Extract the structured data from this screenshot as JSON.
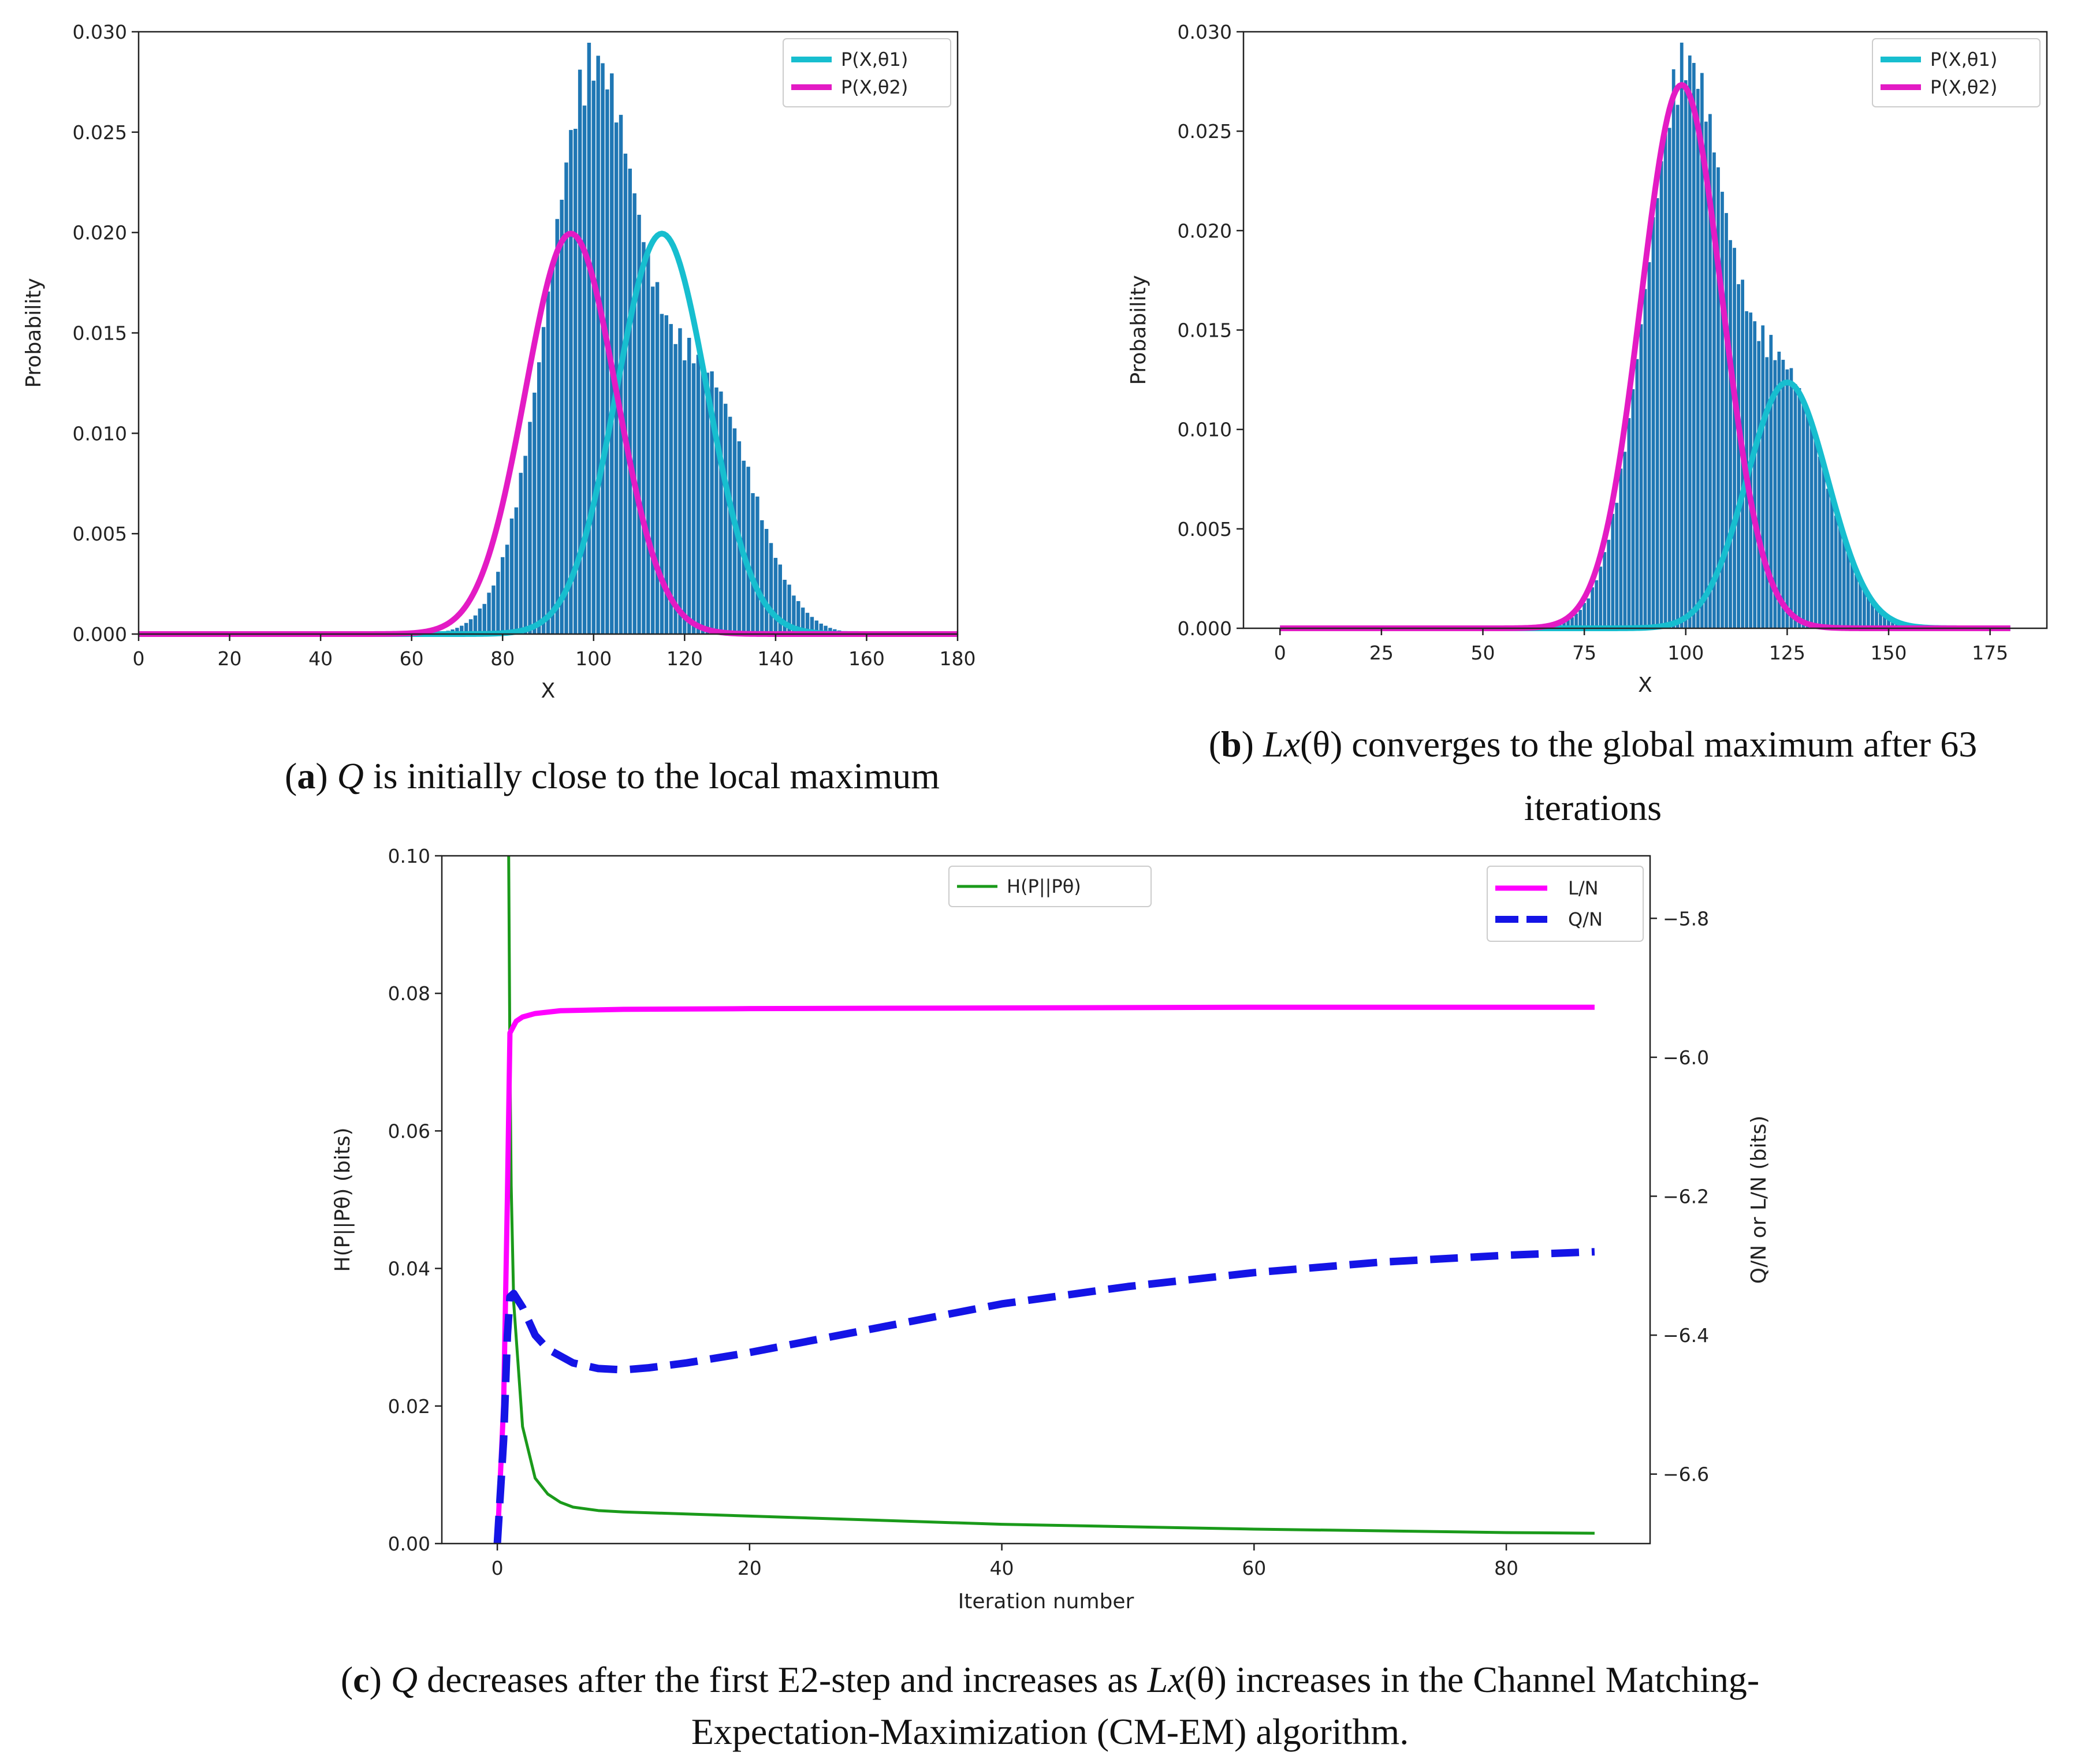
{
  "colors": {
    "hist": "#1f77b4",
    "cyan": "#17becf",
    "magenta": "#e31bc4",
    "green": "#1a9a1a",
    "lmag": "#ff00ff",
    "blue": "#1414e6"
  },
  "captions": {
    "a": {
      "label": "a",
      "prefix": "(",
      "mid": ") ",
      "var": "Q",
      "text": " is initially close to the local maximum"
    },
    "b": {
      "label": "b",
      "prefix": "(",
      "mid": ") ",
      "var": "Lx",
      "paren": "(θ)",
      "text": " converges to the global maximum after 63",
      "line2": "iterations"
    },
    "c": {
      "label": "c",
      "prefix": "(",
      "mid": ") ",
      "var": "Q",
      "text1": " decreases after the first E2-step and increases as ",
      "var2": "Lx",
      "paren": "(θ)",
      "text2": " increases in the Channel Matching-",
      "line2": "Expectation-Maximization (CM-EM) algorithm."
    }
  },
  "chart_data": [
    {
      "id": "a",
      "type": "bar",
      "xlabel": "X",
      "ylabel": "Probability",
      "xlim": [
        0,
        180
      ],
      "ylim": [
        0,
        0.03
      ],
      "xticks": [
        "0",
        "20",
        "40",
        "60",
        "80",
        "100",
        "120",
        "140",
        "160",
        "180"
      ],
      "yticks": [
        "0.000",
        "0.005",
        "0.010",
        "0.015",
        "0.020",
        "0.025",
        "0.030"
      ],
      "legend_position": "top-right",
      "histogram": {
        "description": "mixture of two Gaussians: w=0.7 mu=100 sd=10 and w=0.3 mu=125 sd=10, one bar per integer x",
        "x_start": 60,
        "x_end": 158,
        "components": [
          {
            "weight": 0.7,
            "mu": 100,
            "sigma": 10
          },
          {
            "weight": 0.3,
            "mu": 125,
            "sigma": 10
          }
        ]
      },
      "series": [
        {
          "name": "P(X,θ1)",
          "color": "cyan",
          "mu": 115,
          "sigma": 10,
          "weight": 0.5
        },
        {
          "name": "P(X,θ2)",
          "color": "magenta",
          "mu": 95,
          "sigma": 10,
          "weight": 0.5
        }
      ]
    },
    {
      "id": "b",
      "type": "bar",
      "xlabel": "X",
      "ylabel": "Probability",
      "xlim": [
        -9,
        189
      ],
      "ylim": [
        0,
        0.03
      ],
      "xticks": [
        "0",
        "25",
        "50",
        "75",
        "100",
        "125",
        "150",
        "175"
      ],
      "yticks": [
        "0.000",
        "0.005",
        "0.010",
        "0.015",
        "0.020",
        "0.025",
        "0.030"
      ],
      "legend_position": "top-right",
      "histogram": {
        "description": "same sample histogram as panel (a)",
        "x_start": 60,
        "x_end": 158,
        "components": [
          {
            "weight": 0.7,
            "mu": 100,
            "sigma": 10
          },
          {
            "weight": 0.3,
            "mu": 125,
            "sigma": 10
          }
        ]
      },
      "series": [
        {
          "name": "P(X,θ1)",
          "color": "cyan",
          "mu": 125,
          "sigma": 10,
          "weight": 0.31
        },
        {
          "name": "P(X,θ2)",
          "color": "magenta",
          "mu": 99,
          "sigma": 10,
          "weight": 0.685
        }
      ]
    },
    {
      "id": "c",
      "type": "line",
      "xlabel": "Iteration number",
      "ylabel_left": "H(P||Pθ) (bits)",
      "ylabel_right": "Q/N or L/N (bits)",
      "xlim": [
        -4.4,
        91.4
      ],
      "xticks": [
        "0",
        "20",
        "40",
        "60",
        "80"
      ],
      "ylim_left": [
        0,
        0.1
      ],
      "yticks_left": [
        "0.00",
        "0.02",
        "0.04",
        "0.06",
        "0.08",
        "0.10"
      ],
      "ylim_right": [
        -6.7,
        -5.71
      ],
      "yticks_right": [
        "−5.8",
        "−6.0",
        "−6.2",
        "−6.4",
        "−6.6"
      ],
      "legend_left": {
        "position": "top-center",
        "items": [
          "H(P||Pθ)"
        ]
      },
      "legend_right": {
        "position": "top-right",
        "items": [
          "L/N",
          "Q/N"
        ]
      },
      "series": [
        {
          "name": "H(P||Pθ)",
          "axis": "left",
          "color": "green",
          "style": "solid",
          "x": [
            0.9,
            1.0,
            1.1,
            1.3,
            2,
            3,
            4,
            5,
            6,
            8,
            10,
            20,
            40,
            60,
            80,
            87
          ],
          "y": [
            0.1,
            0.07,
            0.052,
            0.035,
            0.017,
            0.0095,
            0.0072,
            0.006,
            0.0053,
            0.0048,
            0.0046,
            0.004,
            0.0028,
            0.0021,
            0.0016,
            0.0015
          ]
        },
        {
          "name": "L/N",
          "axis": "right",
          "color": "lmag",
          "style": "solid",
          "x": [
            0,
            0.5,
            0.8,
            1,
            1.5,
            2,
            3,
            5,
            10,
            20,
            40,
            60,
            87
          ],
          "y": [
            -6.7,
            -6.5,
            -6.2,
            -5.965,
            -5.948,
            -5.942,
            -5.937,
            -5.933,
            -5.931,
            -5.93,
            -5.929,
            -5.928,
            -5.928
          ]
        },
        {
          "name": "Q/N",
          "axis": "right",
          "color": "blue",
          "style": "dashed",
          "x": [
            0,
            0.5,
            0.8,
            1,
            1.3,
            2,
            3,
            4,
            6,
            8,
            10,
            12,
            15,
            20,
            30,
            40,
            50,
            60,
            70,
            80,
            87
          ],
          "y": [
            -6.7,
            -6.55,
            -6.4,
            -6.345,
            -6.34,
            -6.36,
            -6.4,
            -6.42,
            -6.44,
            -6.448,
            -6.45,
            -6.447,
            -6.44,
            -6.425,
            -6.39,
            -6.355,
            -6.33,
            -6.31,
            -6.295,
            -6.285,
            -6.28
          ]
        }
      ]
    }
  ]
}
